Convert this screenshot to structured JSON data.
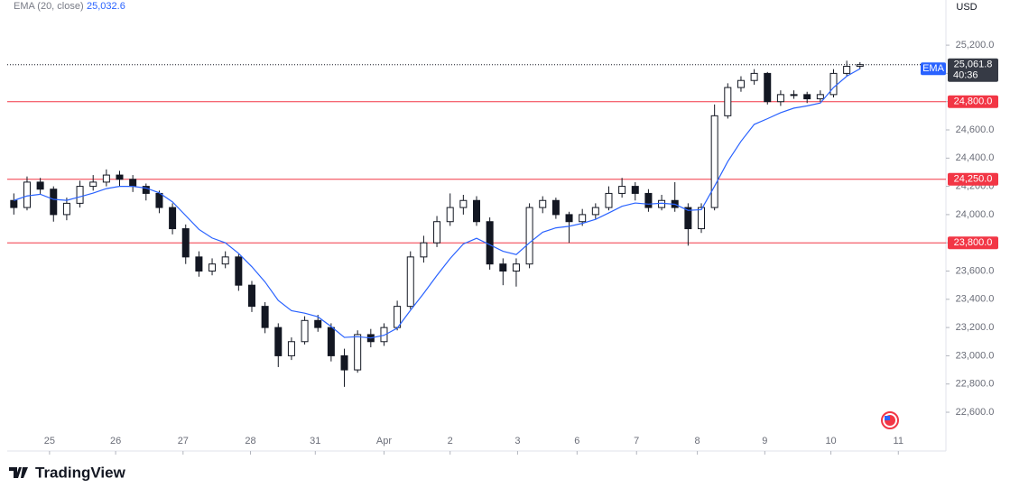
{
  "chart_data": {
    "type": "candlestick",
    "currency": "USD",
    "ylim": [
      22466,
      25520
    ],
    "xlim": [
      -0.5,
      70.5
    ],
    "yticks": [
      {
        "value": 22600,
        "label": "22,600.0"
      },
      {
        "value": 22800,
        "label": "22,800.0"
      },
      {
        "value": 23000,
        "label": "23,000.0"
      },
      {
        "value": 23200,
        "label": "23,200.0"
      },
      {
        "value": 23400,
        "label": "23,400.0"
      },
      {
        "value": 23600,
        "label": "23,600.0"
      },
      {
        "value": 23800,
        "label": "23,800.0"
      },
      {
        "value": 24000,
        "label": "24,000.0"
      },
      {
        "value": 24200,
        "label": "24,200.0"
      },
      {
        "value": 24400,
        "label": "24,400.0"
      },
      {
        "value": 24600,
        "label": "24,600.0"
      },
      {
        "value": 24800,
        "label": "24,800.0"
      },
      {
        "value": 25000,
        "label": "25,000.0"
      },
      {
        "value": 25200,
        "label": "25,200.0"
      }
    ],
    "xticks": [
      {
        "value": 2.7,
        "label": "25"
      },
      {
        "value": 7.7,
        "label": "26"
      },
      {
        "value": 12.8,
        "label": "27"
      },
      {
        "value": 17.9,
        "label": "28"
      },
      {
        "value": 22.8,
        "label": "31"
      },
      {
        "value": 28.0,
        "label": "Apr"
      },
      {
        "value": 33.0,
        "label": "2"
      },
      {
        "value": 38.1,
        "label": "3"
      },
      {
        "value": 42.6,
        "label": "6"
      },
      {
        "value": 47.1,
        "label": "7"
      },
      {
        "value": 51.7,
        "label": "8"
      },
      {
        "value": 56.8,
        "label": "9"
      },
      {
        "value": 61.8,
        "label": "10"
      },
      {
        "value": 66.9,
        "label": "11"
      }
    ],
    "up_color": "#ffffff",
    "down_color": "#131722",
    "x": [
      0,
      1,
      2,
      3,
      4,
      5,
      6,
      7,
      8,
      9,
      10,
      11,
      12,
      13,
      14,
      15,
      16,
      17,
      18,
      19,
      20,
      21,
      22,
      23,
      24,
      25,
      26,
      27,
      28,
      29,
      30,
      31,
      32,
      33,
      34,
      35,
      36,
      37,
      38,
      39,
      40,
      41,
      42,
      43,
      44,
      45,
      46,
      47,
      48,
      49,
      50,
      51,
      52,
      53,
      54,
      55,
      56,
      57,
      58,
      59,
      60,
      61,
      62,
      63,
      64
    ],
    "ohlc": [
      [
        24100,
        24150,
        24000,
        24050
      ],
      [
        24050,
        24270,
        24030,
        24230
      ],
      [
        24230,
        24260,
        24140,
        24180
      ],
      [
        24180,
        24200,
        23950,
        24000
      ],
      [
        24000,
        24120,
        23960,
        24080
      ],
      [
        24080,
        24240,
        24050,
        24200
      ],
      [
        24200,
        24280,
        24170,
        24230
      ],
      [
        24230,
        24320,
        24200,
        24280
      ],
      [
        24280,
        24310,
        24200,
        24250
      ],
      [
        24250,
        24280,
        24160,
        24200
      ],
      [
        24200,
        24220,
        24100,
        24150
      ],
      [
        24150,
        24170,
        24010,
        24050
      ],
      [
        24050,
        24080,
        23860,
        23900
      ],
      [
        23900,
        23930,
        23650,
        23700
      ],
      [
        23700,
        23740,
        23560,
        23600
      ],
      [
        23600,
        23690,
        23570,
        23650
      ],
      [
        23650,
        23740,
        23620,
        23700
      ],
      [
        23700,
        23720,
        23460,
        23500
      ],
      [
        23500,
        23530,
        23310,
        23350
      ],
      [
        23350,
        23380,
        23160,
        23200
      ],
      [
        23200,
        23230,
        22920,
        23000
      ],
      [
        23000,
        23130,
        22970,
        23100
      ],
      [
        23100,
        23280,
        23080,
        23250
      ],
      [
        23250,
        23290,
        23170,
        23200
      ],
      [
        23200,
        23230,
        22960,
        23000
      ],
      [
        23000,
        23050,
        22780,
        22900
      ],
      [
        22900,
        23180,
        22880,
        23150
      ],
      [
        23150,
        23190,
        23060,
        23100
      ],
      [
        23100,
        23230,
        23070,
        23200
      ],
      [
        23200,
        23390,
        23180,
        23350
      ],
      [
        23350,
        23740,
        23330,
        23700
      ],
      [
        23700,
        23850,
        23660,
        23800
      ],
      [
        23800,
        23990,
        23770,
        23950
      ],
      [
        23950,
        24150,
        23920,
        24050
      ],
      [
        24050,
        24140,
        24000,
        24100
      ],
      [
        24100,
        24130,
        23920,
        23950
      ],
      [
        23950,
        23980,
        23610,
        23650
      ],
      [
        23650,
        23690,
        23500,
        23600
      ],
      [
        23600,
        23690,
        23490,
        23650
      ],
      [
        23650,
        24080,
        23620,
        24050
      ],
      [
        24050,
        24130,
        24010,
        24100
      ],
      [
        24100,
        24120,
        23970,
        24000
      ],
      [
        24000,
        24020,
        23800,
        23950
      ],
      [
        23950,
        24040,
        23920,
        24000
      ],
      [
        24000,
        24080,
        23970,
        24050
      ],
      [
        24050,
        24200,
        24030,
        24150
      ],
      [
        24150,
        24260,
        24120,
        24200
      ],
      [
        24200,
        24230,
        24100,
        24150
      ],
      [
        24150,
        24180,
        24020,
        24050
      ],
      [
        24050,
        24140,
        24030,
        24100
      ],
      [
        24100,
        24230,
        24020,
        24050
      ],
      [
        24050,
        24080,
        23780,
        23900
      ],
      [
        23900,
        24080,
        23870,
        24050
      ],
      [
        24050,
        24780,
        24030,
        24700
      ],
      [
        24700,
        24930,
        24680,
        24900
      ],
      [
        24900,
        24980,
        24870,
        24950
      ],
      [
        24950,
        25030,
        24920,
        25000
      ],
      [
        25000,
        25010,
        24780,
        24800
      ],
      [
        24800,
        24880,
        24770,
        24850
      ],
      [
        24850,
        24880,
        24820,
        24850
      ],
      [
        24850,
        24870,
        24790,
        24820
      ],
      [
        24820,
        24880,
        24800,
        24850
      ],
      [
        24850,
        25030,
        24830,
        25000
      ],
      [
        25000,
        25090,
        24980,
        25050
      ],
      [
        25050,
        25080,
        25030,
        25061.8
      ]
    ],
    "series": [
      {
        "name": "EMA (20, close)",
        "tag": "EMA",
        "color": "#2962ff",
        "last_label": "25,032.6",
        "values": [
          24100,
          24132,
          24144,
          24108,
          24101,
          24126,
          24152,
          24184,
          24200,
          24200,
          24188,
          24154,
          24090,
          23993,
          23895,
          23834,
          23800,
          23725,
          23631,
          23523,
          23392,
          23319,
          23302,
          23276,
          23207,
          23130,
          23135,
          23126,
          23145,
          23196,
          23322,
          23442,
          23569,
          23689,
          23792,
          23832,
          23786,
          23740,
          23717,
          23800,
          23875,
          23906,
          23917,
          23938,
          23966,
          24012,
          24059,
          24082,
          24074,
          24081,
          24073,
          24030,
          24035,
          24201,
          24376,
          24519,
          24639,
          24679,
          24722,
          24754,
          24770,
          24790,
          24900,
          24980,
          25032.6
        ]
      }
    ],
    "hlines_color": "#f23645",
    "hlines": [
      {
        "value": 24800,
        "label": "24,800.0"
      },
      {
        "value": 24250,
        "label": "24,250.0"
      },
      {
        "value": 23800,
        "label": "23,800.0"
      }
    ],
    "last_price": {
      "value": 25061.8,
      "label": "25,061.8",
      "countdown": "40:36"
    },
    "brand": "TradingView"
  }
}
